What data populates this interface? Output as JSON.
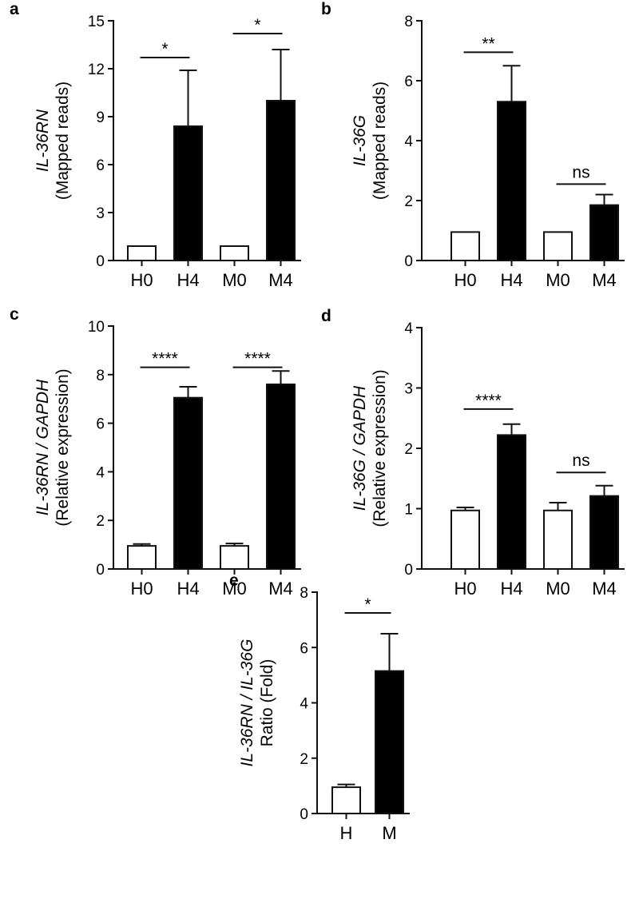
{
  "chart_data": [
    {
      "panel": "a",
      "type": "bar",
      "ylabel_italic": "IL-36RN",
      "ylabel_sub": "(Mapped reads)",
      "ylim": [
        0,
        15
      ],
      "yticks": [
        0,
        3,
        6,
        9,
        12,
        15
      ],
      "categories": [
        "H0",
        "H4",
        "M0",
        "M4"
      ],
      "values": [
        0.9,
        8.4,
        0.9,
        10.0
      ],
      "errors": [
        0,
        3.5,
        0,
        3.2
      ],
      "fills": [
        "#ffffff",
        "#000000",
        "#ffffff",
        "#000000"
      ],
      "significance": [
        {
          "from": 0,
          "to": 1,
          "y": 12.7,
          "label": "*"
        },
        {
          "from": 2,
          "to": 3,
          "y": 14.2,
          "label": "*"
        }
      ]
    },
    {
      "panel": "b",
      "type": "bar",
      "ylabel_italic": "IL-36G",
      "ylabel_sub": "(Mapped reads)",
      "ylim": [
        0,
        8
      ],
      "yticks": [
        0,
        2,
        4,
        6,
        8
      ],
      "categories": [
        "H0",
        "H4",
        "M0",
        "M4"
      ],
      "values": [
        0.95,
        5.3,
        0.95,
        1.85
      ],
      "errors": [
        0,
        1.2,
        0,
        0.35
      ],
      "fills": [
        "#ffffff",
        "#000000",
        "#ffffff",
        "#000000"
      ],
      "significance": [
        {
          "from": 0,
          "to": 1,
          "y": 6.95,
          "label": "**"
        },
        {
          "from": 2,
          "to": 3,
          "y": 2.55,
          "label": "ns"
        }
      ]
    },
    {
      "panel": "c",
      "type": "bar",
      "ylabel_italic": "IL-36RN / GAPDH",
      "ylabel_sub": "(Relative expression)",
      "ylim": [
        0,
        10
      ],
      "yticks": [
        0,
        2,
        4,
        6,
        8,
        10
      ],
      "categories": [
        "H0",
        "H4",
        "M0",
        "M4"
      ],
      "values": [
        0.95,
        7.05,
        0.95,
        7.6
      ],
      "errors": [
        0.08,
        0.45,
        0.1,
        0.55
      ],
      "fills": [
        "#ffffff",
        "#000000",
        "#ffffff",
        "#000000"
      ],
      "significance": [
        {
          "from": 0,
          "to": 1,
          "y": 8.3,
          "label": "****"
        },
        {
          "from": 2,
          "to": 3,
          "y": 8.3,
          "label": "****"
        }
      ]
    },
    {
      "panel": "d",
      "type": "bar",
      "ylabel_italic": "IL-36G / GAPDH",
      "ylabel_sub": "(Relative expression)",
      "ylim": [
        0,
        4
      ],
      "yticks": [
        0,
        1,
        2,
        3,
        4
      ],
      "categories": [
        "H0",
        "H4",
        "M0",
        "M4"
      ],
      "values": [
        0.97,
        2.22,
        0.97,
        1.21
      ],
      "errors": [
        0.05,
        0.18,
        0.13,
        0.17
      ],
      "fills": [
        "#ffffff",
        "#000000",
        "#ffffff",
        "#000000"
      ],
      "significance": [
        {
          "from": 0,
          "to": 1,
          "y": 2.65,
          "label": "****"
        },
        {
          "from": 2,
          "to": 3,
          "y": 1.6,
          "label": "ns"
        }
      ]
    },
    {
      "panel": "e",
      "type": "bar",
      "ylabel_italic": "IL-36RN / IL-36G",
      "ylabel_sub": "Ratio (Fold)",
      "ylim": [
        0,
        8
      ],
      "yticks": [
        0,
        2,
        4,
        6,
        8
      ],
      "categories": [
        "H",
        "M"
      ],
      "values": [
        0.95,
        5.15
      ],
      "errors": [
        0.1,
        1.35
      ],
      "fills": [
        "#ffffff",
        "#000000"
      ],
      "significance": [
        {
          "from": 0,
          "to": 1,
          "y": 7.25,
          "label": "*"
        }
      ]
    }
  ]
}
